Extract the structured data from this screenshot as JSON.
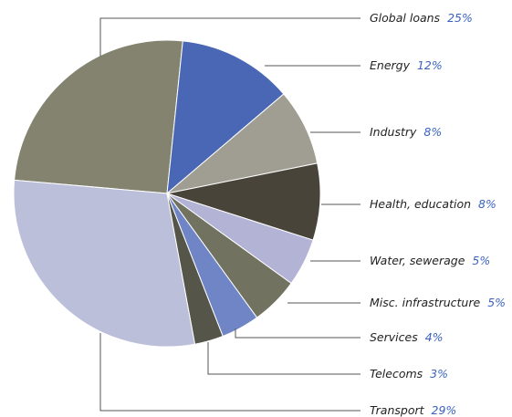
{
  "chart_data": {
    "type": "pie",
    "categories": [
      "Global loans",
      "Energy",
      "Industry",
      "Health, education",
      "Water, sewerage",
      "Misc. infrastructure",
      "Services",
      "Telecoms",
      "Transport"
    ],
    "values": [
      25,
      12,
      8,
      8,
      5,
      5,
      4,
      3,
      29
    ],
    "value_labels": [
      "25%",
      "12%",
      "8%",
      "8%",
      "5%",
      "5%",
      "4%",
      "3%",
      "29%"
    ],
    "colors": [
      "#838370",
      "#4a67b5",
      "#a09e92",
      "#48443a",
      "#b3b3d6",
      "#727261",
      "#6f85c6",
      "#55554a",
      "#bcbfda"
    ]
  }
}
